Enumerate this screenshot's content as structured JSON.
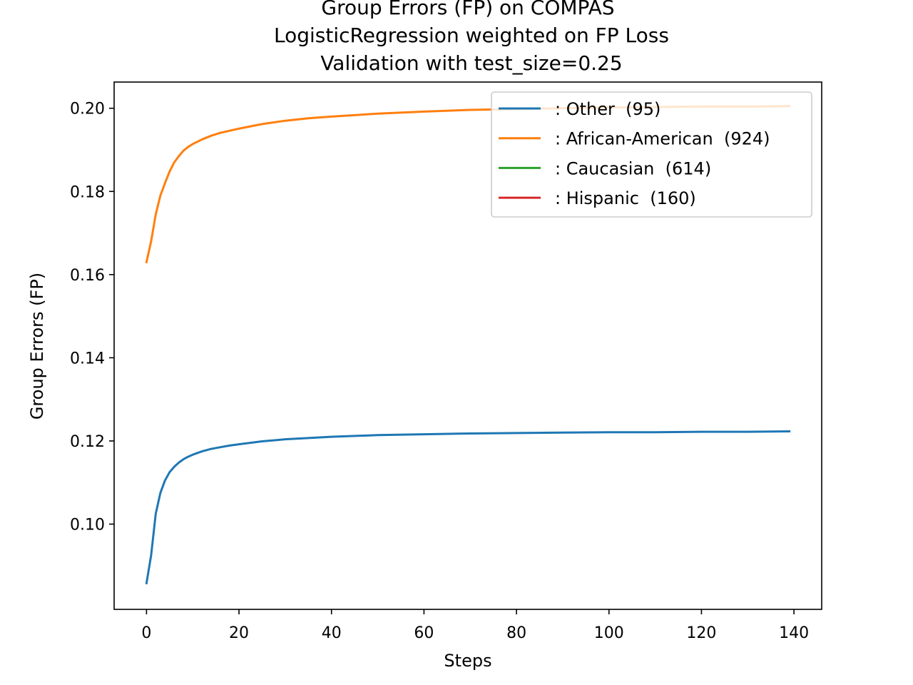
{
  "chart_data": {
    "type": "line",
    "title_lines": [
      "Group Errors (FP) on COMPAS",
      "LogisticRegression weighted on FP Loss",
      "Validation with test_size=0.25"
    ],
    "xlabel": "Steps",
    "ylabel": "Group Errors (FP)",
    "xlim": [
      -7,
      146
    ],
    "ylim": [
      0.0795,
      0.2063
    ],
    "xticks": [
      0,
      20,
      40,
      60,
      80,
      100,
      120,
      140
    ],
    "yticks": [
      0.1,
      0.12,
      0.14,
      0.16,
      0.18,
      0.2
    ],
    "xtick_labels": [
      "0",
      "20",
      "40",
      "60",
      "80",
      "100",
      "120",
      "140"
    ],
    "ytick_labels": [
      "0.10",
      "0.12",
      "0.14",
      "0.16",
      "0.18",
      "0.20"
    ],
    "grid": false,
    "legend_position": "upper-right",
    "series": [
      {
        "name": ": Other  (95)",
        "color": "#1f77b4",
        "x": [
          0,
          1,
          2,
          3,
          4,
          5,
          6,
          7,
          8,
          9,
          10,
          12,
          14,
          16,
          18,
          20,
          25,
          30,
          35,
          40,
          50,
          60,
          70,
          80,
          90,
          100,
          110,
          120,
          130,
          139
        ],
        "y": [
          0.0858,
          0.0925,
          0.1025,
          0.1075,
          0.1105,
          0.1125,
          0.1138,
          0.1148,
          0.1156,
          0.1162,
          0.1167,
          0.1175,
          0.1181,
          0.1185,
          0.1189,
          0.1192,
          0.1199,
          0.1204,
          0.1207,
          0.121,
          0.1214,
          0.1216,
          0.1218,
          0.1219,
          0.122,
          0.1221,
          0.1221,
          0.1222,
          0.1222,
          0.1223
        ]
      },
      {
        "name": ": African-American  (924)",
        "color": "#ff7f0e",
        "x": [
          0,
          1,
          2,
          3,
          4,
          5,
          6,
          7,
          8,
          9,
          10,
          12,
          14,
          16,
          18,
          20,
          25,
          30,
          35,
          40,
          50,
          60,
          70,
          80,
          90,
          100,
          110,
          120,
          130,
          139
        ],
        "y": [
          0.163,
          0.168,
          0.1745,
          0.179,
          0.182,
          0.1848,
          0.187,
          0.1885,
          0.1898,
          0.1907,
          0.1914,
          0.1925,
          0.1934,
          0.1941,
          0.1946,
          0.1951,
          0.1962,
          0.197,
          0.1976,
          0.198,
          0.1987,
          0.1992,
          0.1996,
          0.1998,
          0.2,
          0.2002,
          0.2003,
          0.2004,
          0.2004,
          0.2005
        ]
      },
      {
        "name": ": Caucasian  (614)",
        "color": "#2ca02c",
        "x": [],
        "y": []
      },
      {
        "name": ": Hispanic  (160)",
        "color": "#d62728",
        "x": [],
        "y": []
      }
    ]
  }
}
